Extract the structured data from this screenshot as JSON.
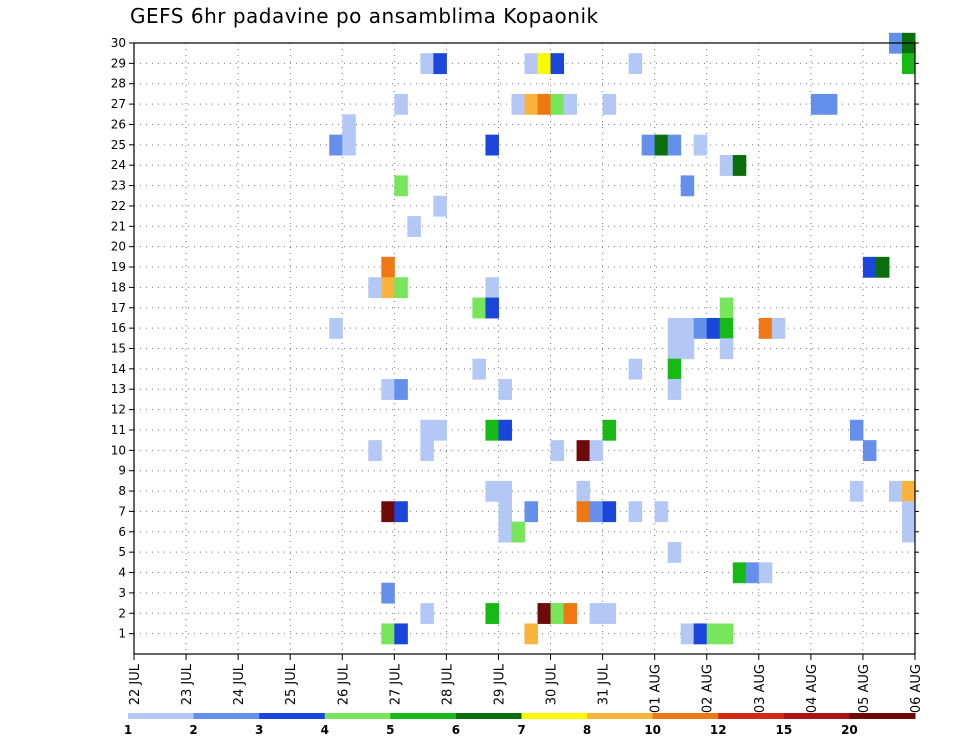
{
  "title": "GEFS 6hr padavine po ansamblima Kopaonik",
  "chart_data": {
    "type": "heatmap",
    "title": "GEFS 6hr padavine po ansamblima Kopaonik",
    "xlabel": "",
    "ylabel": "",
    "x_ticks": [
      "22 JUL",
      "23 JUL",
      "24 JUL",
      "25 JUL",
      "26 JUL",
      "27 JUL",
      "28 JUL",
      "29 JUL",
      "30 JUL",
      "31 JUL",
      "01 AUG",
      "02 AUG",
      "03 AUG",
      "04 AUG",
      "05 AUG",
      "06 AUG"
    ],
    "y_ticks": [
      "1",
      "2",
      "3",
      "4",
      "5",
      "6",
      "7",
      "8",
      "9",
      "10",
      "11",
      "12",
      "13",
      "14",
      "15",
      "16",
      "17",
      "18",
      "19",
      "20",
      "21",
      "22",
      "23",
      "24",
      "25",
      "26",
      "27",
      "28",
      "29",
      "30"
    ],
    "ylim": [
      0,
      30
    ],
    "steps_per_day": 4,
    "grid": true,
    "legend_position": "bottom",
    "colorbar": {
      "labels": [
        "1",
        "2",
        "3",
        "4",
        "5",
        "6",
        "7",
        "8",
        "10",
        "12",
        "15",
        "20"
      ],
      "colors": [
        "#b4c8f5",
        "#6490eb",
        "#1a46dc",
        "#78e65a",
        "#16b916",
        "#0a6e0a",
        "#fafa00",
        "#fab43c",
        "#f07814",
        "#d72814",
        "#aa1414",
        "#6e0a0a"
      ]
    },
    "cells": [
      {
        "m": 30,
        "s": 59,
        "v": 2
      },
      {
        "m": 30,
        "s": 60,
        "v": 6
      },
      {
        "m": 29,
        "s": 23,
        "v": 1
      },
      {
        "m": 29,
        "s": 24,
        "v": 3
      },
      {
        "m": 29,
        "s": 31,
        "v": 1
      },
      {
        "m": 29,
        "s": 32,
        "v": 7
      },
      {
        "m": 29,
        "s": 33,
        "v": 3
      },
      {
        "m": 29,
        "s": 39,
        "v": 1
      },
      {
        "m": 29,
        "s": 60,
        "v": 5
      },
      {
        "m": 27,
        "s": 21,
        "v": 1
      },
      {
        "m": 27,
        "s": 30,
        "v": 1
      },
      {
        "m": 27,
        "s": 31,
        "v": 8
      },
      {
        "m": 27,
        "s": 32,
        "v": 10
      },
      {
        "m": 27,
        "s": 33,
        "v": 4
      },
      {
        "m": 27,
        "s": 34,
        "v": 1
      },
      {
        "m": 27,
        "s": 37,
        "v": 1
      },
      {
        "m": 27,
        "s": 53,
        "v": 2
      },
      {
        "m": 27,
        "s": 54,
        "v": 2
      },
      {
        "m": 26,
        "s": 17,
        "v": 1
      },
      {
        "m": 25,
        "s": 16,
        "v": 2
      },
      {
        "m": 25,
        "s": 17,
        "v": 1
      },
      {
        "m": 25,
        "s": 28,
        "v": 3
      },
      {
        "m": 25,
        "s": 40,
        "v": 2
      },
      {
        "m": 25,
        "s": 41,
        "v": 6
      },
      {
        "m": 25,
        "s": 42,
        "v": 2
      },
      {
        "m": 25,
        "s": 44,
        "v": 1
      },
      {
        "m": 24,
        "s": 46,
        "v": 1
      },
      {
        "m": 24,
        "s": 47,
        "v": 6
      },
      {
        "m": 23,
        "s": 21,
        "v": 4
      },
      {
        "m": 23,
        "s": 43,
        "v": 2
      },
      {
        "m": 22,
        "s": 24,
        "v": 1
      },
      {
        "m": 21,
        "s": 22,
        "v": 1
      },
      {
        "m": 19,
        "s": 20,
        "v": 10
      },
      {
        "m": 19,
        "s": 57,
        "v": 3
      },
      {
        "m": 19,
        "s": 58,
        "v": 6
      },
      {
        "m": 18,
        "s": 19,
        "v": 1
      },
      {
        "m": 18,
        "s": 20,
        "v": 8
      },
      {
        "m": 18,
        "s": 21,
        "v": 4
      },
      {
        "m": 18,
        "s": 28,
        "v": 1
      },
      {
        "m": 17,
        "s": 27,
        "v": 4
      },
      {
        "m": 17,
        "s": 28,
        "v": 3
      },
      {
        "m": 17,
        "s": 46,
        "v": 4
      },
      {
        "m": 16,
        "s": 16,
        "v": 1
      },
      {
        "m": 16,
        "s": 42,
        "v": 1
      },
      {
        "m": 16,
        "s": 43,
        "v": 1
      },
      {
        "m": 16,
        "s": 44,
        "v": 2
      },
      {
        "m": 16,
        "s": 45,
        "v": 3
      },
      {
        "m": 16,
        "s": 46,
        "v": 5
      },
      {
        "m": 16,
        "s": 49,
        "v": 10
      },
      {
        "m": 16,
        "s": 50,
        "v": 1
      },
      {
        "m": 15,
        "s": 42,
        "v": 1
      },
      {
        "m": 15,
        "s": 43,
        "v": 1
      },
      {
        "m": 15,
        "s": 46,
        "v": 1
      },
      {
        "m": 14,
        "s": 27,
        "v": 1
      },
      {
        "m": 14,
        "s": 39,
        "v": 1
      },
      {
        "m": 14,
        "s": 42,
        "v": 5
      },
      {
        "m": 13,
        "s": 20,
        "v": 1
      },
      {
        "m": 13,
        "s": 21,
        "v": 2
      },
      {
        "m": 13,
        "s": 29,
        "v": 1
      },
      {
        "m": 13,
        "s": 42,
        "v": 1
      },
      {
        "m": 11,
        "s": 23,
        "v": 1
      },
      {
        "m": 11,
        "s": 24,
        "v": 1
      },
      {
        "m": 11,
        "s": 28,
        "v": 5
      },
      {
        "m": 11,
        "s": 29,
        "v": 3
      },
      {
        "m": 11,
        "s": 37,
        "v": 5
      },
      {
        "m": 11,
        "s": 56,
        "v": 2
      },
      {
        "m": 10,
        "s": 19,
        "v": 1
      },
      {
        "m": 10,
        "s": 23,
        "v": 1
      },
      {
        "m": 10,
        "s": 33,
        "v": 1
      },
      {
        "m": 10,
        "s": 35,
        "v": 20
      },
      {
        "m": 10,
        "s": 36,
        "v": 1
      },
      {
        "m": 10,
        "s": 57,
        "v": 2
      },
      {
        "m": 8,
        "s": 28,
        "v": 1
      },
      {
        "m": 8,
        "s": 29,
        "v": 1
      },
      {
        "m": 8,
        "s": 35,
        "v": 1
      },
      {
        "m": 8,
        "s": 56,
        "v": 1
      },
      {
        "m": 8,
        "s": 59,
        "v": 1
      },
      {
        "m": 8,
        "s": 60,
        "v": 8
      },
      {
        "m": 7,
        "s": 20,
        "v": 20
      },
      {
        "m": 7,
        "s": 21,
        "v": 3
      },
      {
        "m": 7,
        "s": 29,
        "v": 1
      },
      {
        "m": 7,
        "s": 31,
        "v": 2
      },
      {
        "m": 7,
        "s": 35,
        "v": 10
      },
      {
        "m": 7,
        "s": 36,
        "v": 2
      },
      {
        "m": 7,
        "s": 37,
        "v": 3
      },
      {
        "m": 7,
        "s": 39,
        "v": 1
      },
      {
        "m": 7,
        "s": 41,
        "v": 1
      },
      {
        "m": 7,
        "s": 60,
        "v": 1
      },
      {
        "m": 6,
        "s": 29,
        "v": 1
      },
      {
        "m": 6,
        "s": 30,
        "v": 4
      },
      {
        "m": 6,
        "s": 60,
        "v": 1
      },
      {
        "m": 5,
        "s": 42,
        "v": 1
      },
      {
        "m": 4,
        "s": 47,
        "v": 5
      },
      {
        "m": 4,
        "s": 48,
        "v": 2
      },
      {
        "m": 4,
        "s": 49,
        "v": 1
      },
      {
        "m": 3,
        "s": 20,
        "v": 2
      },
      {
        "m": 2,
        "s": 23,
        "v": 1
      },
      {
        "m": 2,
        "s": 28,
        "v": 5
      },
      {
        "m": 2,
        "s": 32,
        "v": 20
      },
      {
        "m": 2,
        "s": 33,
        "v": 4
      },
      {
        "m": 2,
        "s": 34,
        "v": 10
      },
      {
        "m": 2,
        "s": 36,
        "v": 1
      },
      {
        "m": 2,
        "s": 37,
        "v": 1
      },
      {
        "m": 1,
        "s": 20,
        "v": 4
      },
      {
        "m": 1,
        "s": 21,
        "v": 3
      },
      {
        "m": 1,
        "s": 31,
        "v": 8
      },
      {
        "m": 1,
        "s": 43,
        "v": 1
      },
      {
        "m": 1,
        "s": 44,
        "v": 3
      },
      {
        "m": 1,
        "s": 45,
        "v": 4
      },
      {
        "m": 1,
        "s": 46,
        "v": 4
      }
    ]
  }
}
